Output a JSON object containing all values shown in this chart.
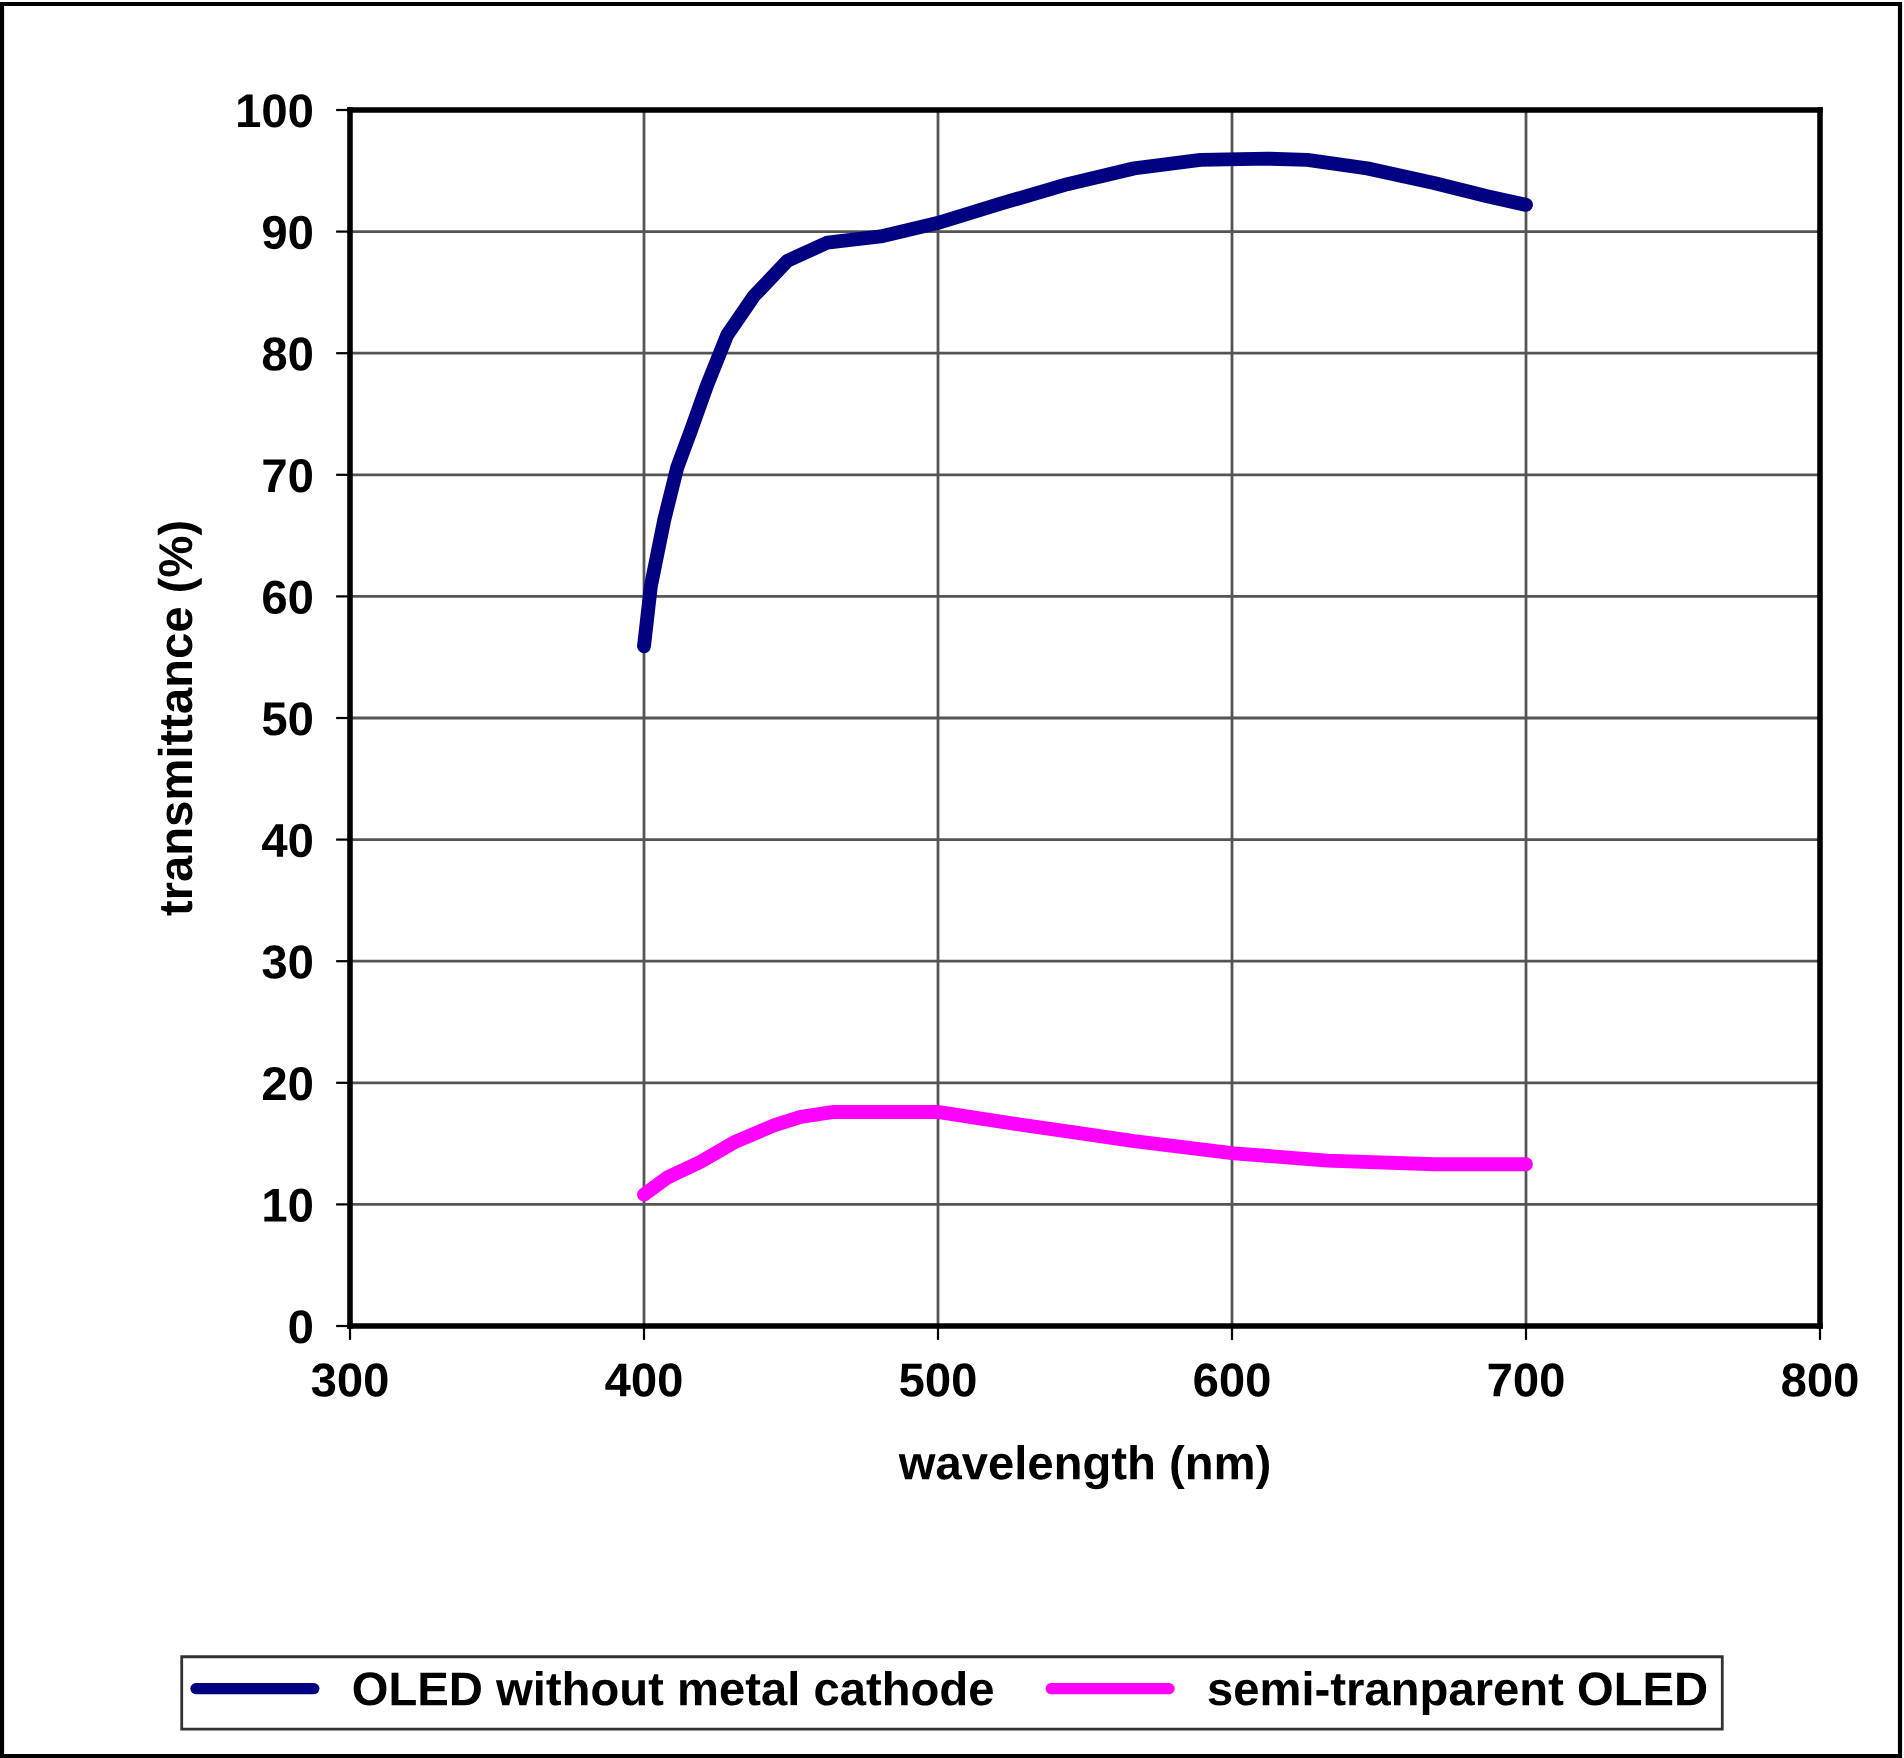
{
  "chart_data": {
    "type": "line",
    "xlabel": "wavelength (nm)",
    "ylabel": "transmittance (%)",
    "xlim": [
      300,
      800
    ],
    "xticks": [
      300,
      400,
      500,
      600,
      700,
      800
    ],
    "ylim": [
      0,
      100
    ],
    "yticks": [
      0,
      10,
      20,
      30,
      40,
      50,
      60,
      70,
      80,
      90,
      100
    ],
    "grid": true,
    "legend": "bottom",
    "marker": "none",
    "line_style": "solid",
    "series": [
      {
        "name": "OLED without metal cathode",
        "color": "#000080",
        "x": [
          400,
          402.3,
          406.8,
          411.3,
          415.9,
          421.5,
          428.3,
          437.4,
          448.8,
          462.4,
          480.5,
          499.8,
          521.3,
          544,
          566.7,
          589.3,
          612,
          625.6,
          646,
          668.7,
          686.8,
          700
        ],
        "values": [
          55.9,
          60.8,
          66.2,
          70.6,
          73.6,
          77.4,
          81.5,
          84.7,
          87.6,
          89.1,
          89.6,
          90.7,
          92.3,
          93.9,
          95.2,
          95.9,
          96.0,
          95.9,
          95.2,
          94.0,
          92.9,
          92.2
        ]
      },
      {
        "name": "semi-tranparent OLED",
        "color": "#ff00ff",
        "x": [
          400,
          407.9,
          419.3,
          430.6,
          444.2,
          453.3,
          464.6,
          499.8,
          521.3,
          544,
          566.7,
          600.7,
          632.4,
          668.7,
          700
        ],
        "values": [
          10.8,
          12.2,
          13.5,
          15.1,
          16.5,
          17.2,
          17.6,
          17.6,
          16.8,
          16.0,
          15.2,
          14.2,
          13.6,
          13.3,
          13.3
        ]
      }
    ]
  }
}
